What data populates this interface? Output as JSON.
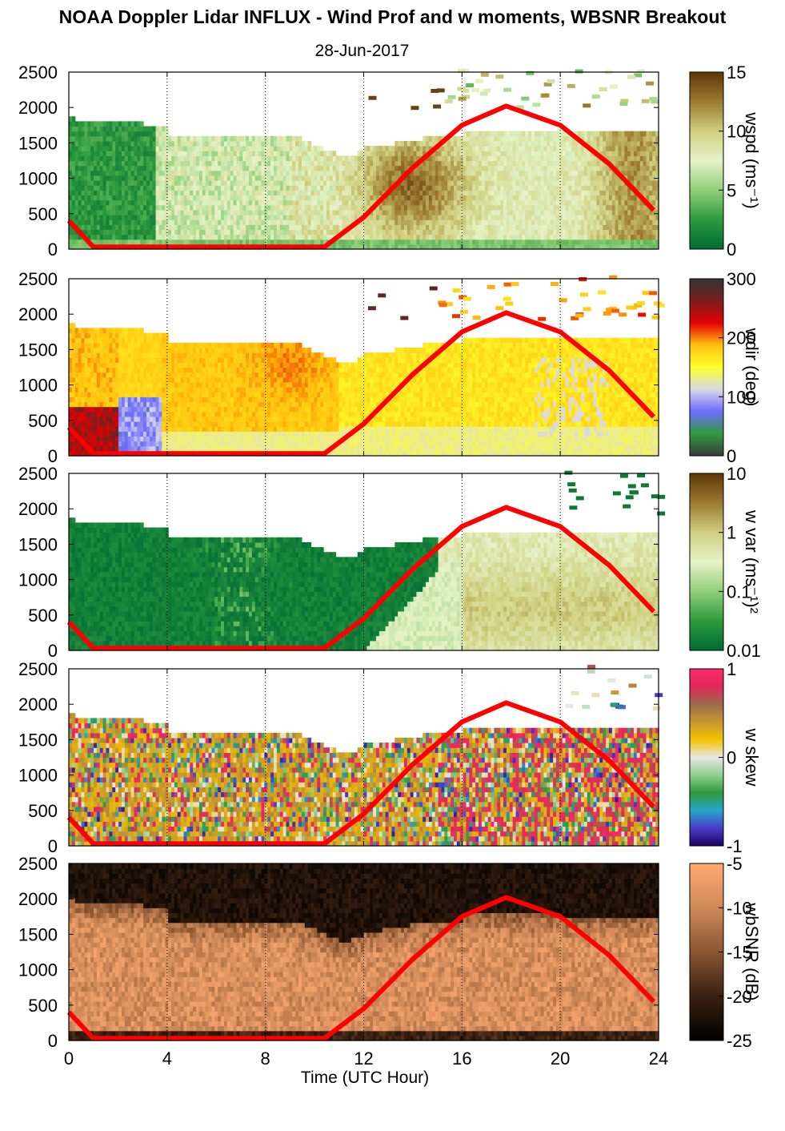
{
  "figure": {
    "title": "NOAA Doppler Lidar INFLUX - Wind Prof and w moments, WBSNR Breakout",
    "subtitle": "28-Jun-2017",
    "xlabel": "Time (UTC Hour)"
  },
  "chart_data": {
    "type": "heatmap",
    "x_axis": {
      "range": [
        0,
        24
      ],
      "ticks": [
        0,
        4,
        8,
        12,
        16,
        20,
        24
      ],
      "gridlines": [
        4,
        8,
        12,
        16,
        20,
        24
      ]
    },
    "y_axis": {
      "range": [
        0,
        2500
      ],
      "ticks": [
        0,
        500,
        1000,
        1500,
        2000,
        2500
      ]
    },
    "panels": [
      {
        "id": "wspd",
        "colorbar_label": "wspd (ms⁻¹)",
        "colorbar_ticks": [
          "0",
          "5",
          "10",
          "15"
        ],
        "colormap": [
          "#006b34",
          "#2e9a3e",
          "#90cf78",
          "#e6f3c8",
          "#cfcf7e",
          "#9c7a30",
          "#5e3608"
        ]
      },
      {
        "id": "wdir",
        "colorbar_label": "wdir (deg)",
        "colorbar_ticks": [
          "0",
          "100",
          "200",
          "300"
        ],
        "colormap": [
          "#3b3b3b",
          "#2f9a3d",
          "#6d6dff",
          "#d9d9e6",
          "#ffff2e",
          "#ffc20e",
          "#e60000",
          "#7a1e1e",
          "#333333"
        ]
      },
      {
        "id": "wvar",
        "colorbar_label": "w var (ms⁻¹)²",
        "colorbar_ticks": [
          "0.01",
          "0.1",
          "1",
          "10"
        ],
        "colormap": [
          "#006b34",
          "#2e9a3e",
          "#90cf78",
          "#e6f3c8",
          "#cfcf7e",
          "#9c7a30",
          "#5e3608"
        ]
      },
      {
        "id": "wskew",
        "colorbar_label": "w skew",
        "colorbar_ticks": [
          "-1",
          "0",
          "1"
        ],
        "colormap": [
          "#1a0060",
          "#4b3cc8",
          "#26a6c8",
          "#2f9a3d",
          "#8fd08f",
          "#e6e6e6",
          "#f4c400",
          "#c8962e",
          "#9a6b4a",
          "#e0285a",
          "#ff2a6a"
        ]
      },
      {
        "id": "wbsnr",
        "colorbar_label": "wbSNR (dB)",
        "colorbar_ticks": [
          "-25",
          "-20",
          "-15",
          "-10",
          "-5"
        ],
        "colormap": [
          "#000000",
          "#3a2010",
          "#8a5530",
          "#d08a5a",
          "#ffa970"
        ]
      }
    ],
    "overlay": {
      "name": "red sun-elevation curve",
      "color": "#ff0000",
      "points": [
        [
          0,
          400
        ],
        [
          1.0,
          30
        ],
        [
          10.4,
          30
        ],
        [
          12,
          450
        ],
        [
          14,
          1150
        ],
        [
          16,
          1750
        ],
        [
          17.8,
          2020
        ],
        [
          20,
          1750
        ],
        [
          22,
          1200
        ],
        [
          23.8,
          550
        ]
      ]
    }
  }
}
